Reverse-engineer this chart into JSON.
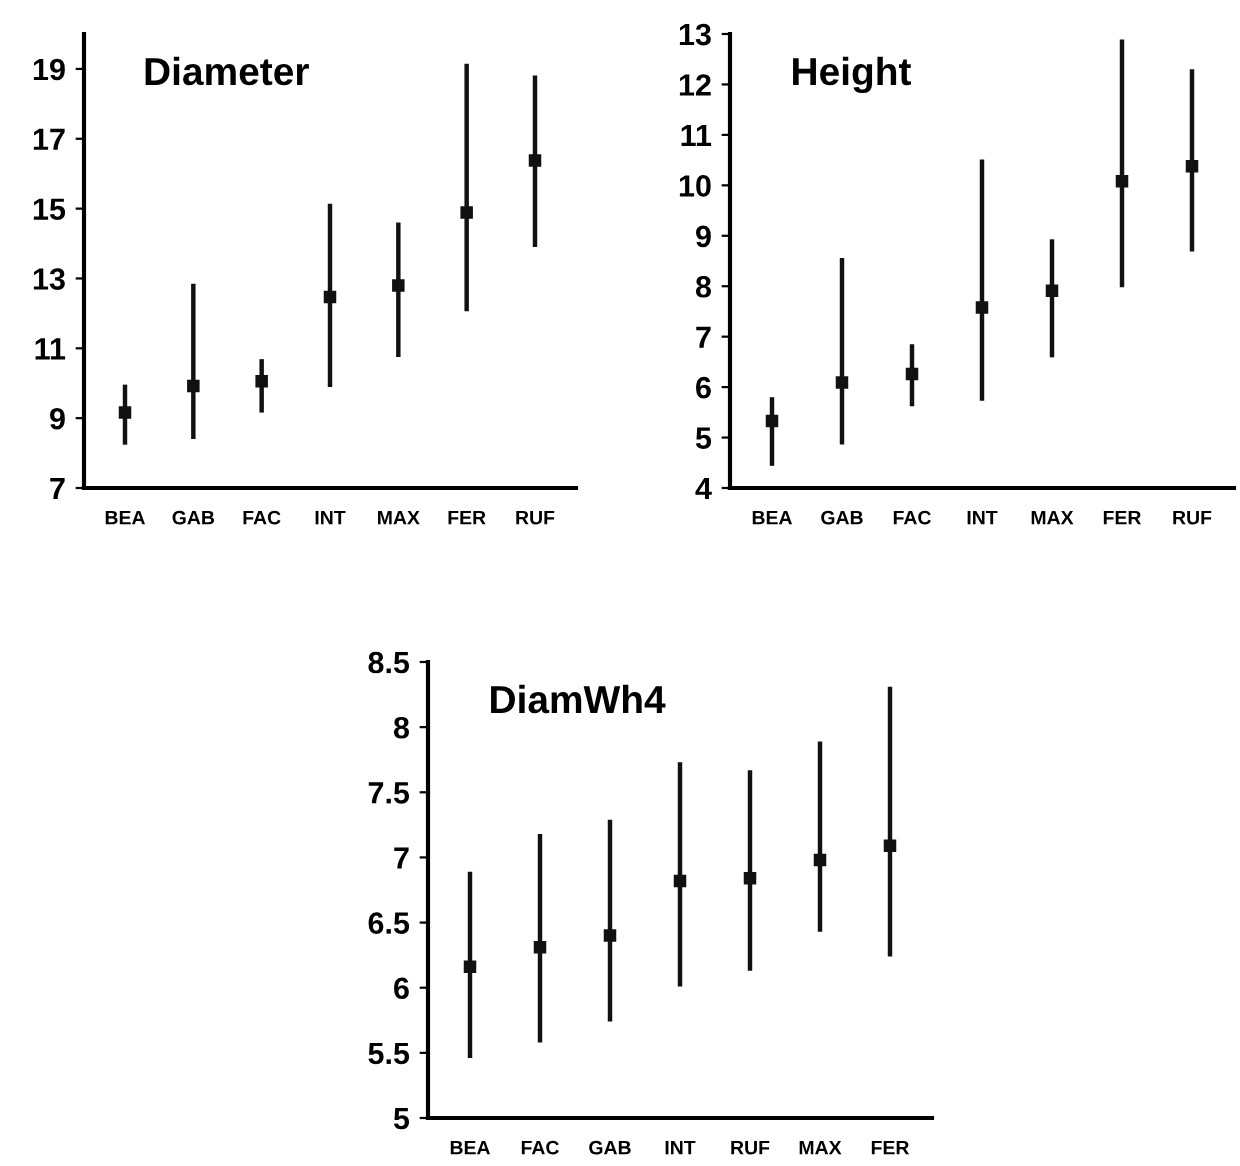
{
  "chart_data": [
    {
      "type": "scatter",
      "title": "Diameter",
      "categories": [
        "BEA",
        "GAB",
        "FAC",
        "INT",
        "MAX",
        "FER",
        "RUF"
      ],
      "values": [
        9.16,
        9.92,
        10.06,
        12.47,
        12.8,
        14.89,
        16.38
      ],
      "errors": [
        [
          8.24,
          9.96
        ],
        [
          8.4,
          12.85
        ],
        [
          9.16,
          10.69
        ],
        [
          9.89,
          15.14
        ],
        [
          10.75,
          14.6
        ],
        [
          12.06,
          19.15
        ],
        [
          13.9,
          18.81
        ]
      ],
      "color": "#111111",
      "marker": "square",
      "ylim": [
        7,
        20
      ],
      "yticks": [
        7,
        9,
        11,
        13,
        15,
        17,
        19
      ],
      "grid": false,
      "legend": false
    },
    {
      "type": "scatter",
      "title": "Height",
      "categories": [
        "BEA",
        "GAB",
        "FAC",
        "INT",
        "MAX",
        "FER",
        "RUF"
      ],
      "values": [
        5.33,
        6.09,
        6.26,
        7.58,
        7.91,
        10.08,
        10.38
      ],
      "errors": [
        [
          4.44,
          5.8
        ],
        [
          4.86,
          8.56
        ],
        [
          5.62,
          6.85
        ],
        [
          5.73,
          10.51
        ],
        [
          6.59,
          8.93
        ],
        [
          7.98,
          12.89
        ],
        [
          8.69,
          12.3
        ]
      ],
      "color": "#111111",
      "marker": "square",
      "ylim": [
        4,
        13
      ],
      "yticks": [
        4,
        5,
        6,
        7,
        8,
        9,
        10,
        11,
        12,
        13
      ],
      "grid": false,
      "legend": false
    },
    {
      "type": "scatter",
      "title": "DiamWh4",
      "categories": [
        "BEA",
        "FAC",
        "GAB",
        "INT",
        "RUF",
        "MAX",
        "FER"
      ],
      "values": [
        6.16,
        6.31,
        6.4,
        6.82,
        6.84,
        6.98,
        7.09
      ],
      "errors": [
        [
          5.46,
          6.89
        ],
        [
          5.58,
          7.18
        ],
        [
          5.74,
          7.29
        ],
        [
          6.01,
          7.73
        ],
        [
          6.13,
          7.67
        ],
        [
          6.43,
          7.89
        ],
        [
          6.24,
          8.31
        ]
      ],
      "color": "#111111",
      "marker": "square",
      "ylim": [
        5,
        8.5
      ],
      "yticks": [
        5,
        5.5,
        6,
        6.5,
        7,
        7.5,
        8,
        8.5
      ],
      "grid": false,
      "legend": false
    }
  ]
}
